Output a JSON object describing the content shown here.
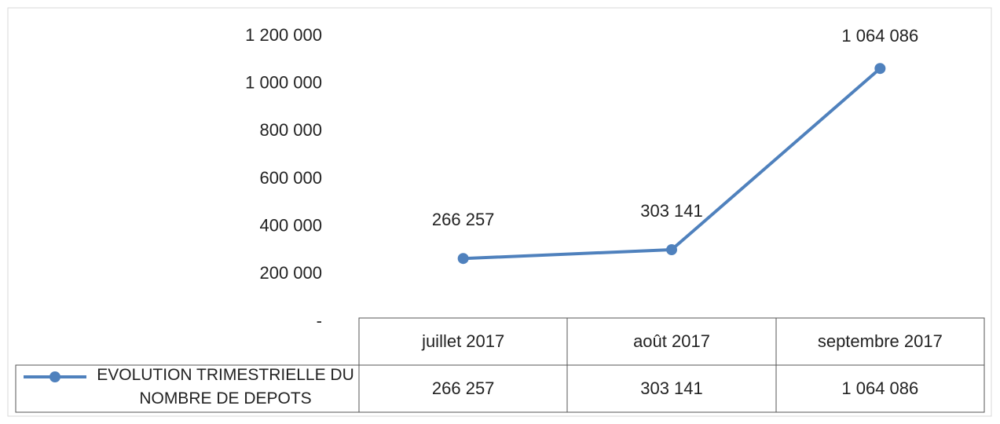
{
  "chart_data": {
    "type": "line",
    "categories": [
      "juillet 2017",
      "août 2017",
      "septembre 2017"
    ],
    "series": [
      {
        "name": "EVOLUTION TRIMESTRIELLE DU NOMBRE DE DEPOTS",
        "color": "#4f81bd",
        "values": [
          266257,
          303141,
          1064086
        ],
        "value_labels": [
          "266 257",
          "303 141",
          "1 064 086"
        ]
      }
    ],
    "ylim": [
      0,
      1200000
    ],
    "yticks": [
      {
        "value": 0,
        "label": "-"
      },
      {
        "value": 200000,
        "label": "200 000"
      },
      {
        "value": 400000,
        "label": "400 000"
      },
      {
        "value": 600000,
        "label": "600 000"
      },
      {
        "value": 800000,
        "label": "800 000"
      },
      {
        "value": 1000000,
        "label": "1 000 000"
      },
      {
        "value": 1200000,
        "label": "1 200 000"
      }
    ],
    "grid": false
  }
}
